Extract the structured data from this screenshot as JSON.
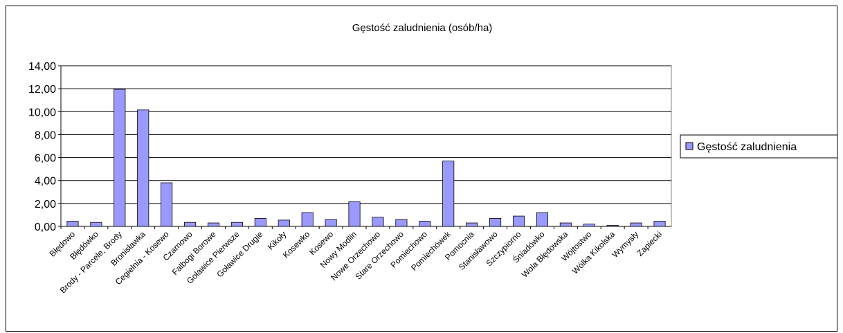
{
  "chart_data": {
    "type": "bar",
    "title": "Gęstość zaludnienia (osób/ha)",
    "categories": [
      "Błędowo",
      "Błędówko",
      "Brody - Parcele, Brody",
      "Bronisławka",
      "Cegielnia - Kosewo",
      "Czarnowo",
      "Falbogi Borowe",
      "Goławice Pierwsze",
      "Goławice Drugie",
      "Kikoły",
      "Kosewko",
      "Kosewo",
      "Nowy Modlin",
      "Nowe Orzechowo",
      "Stare Orzechowo",
      "Pomiechowo",
      "Pomiechówek",
      "Pomocnia",
      "Stanisławowo",
      "Szczypiorno",
      "Śniadówko",
      "Wola Błędowska",
      "Wójtostwo",
      "Wólka Kikolska",
      "Wymysły",
      "Zapiecki"
    ],
    "series": [
      {
        "name": "Gęstość zaludnienia",
        "color": "#9999ff",
        "values": [
          0.45,
          0.35,
          11.95,
          10.15,
          3.8,
          0.35,
          0.3,
          0.35,
          0.7,
          0.55,
          1.2,
          0.6,
          2.15,
          0.8,
          0.6,
          0.45,
          5.7,
          0.3,
          0.7,
          0.9,
          1.2,
          0.3,
          0.2,
          0.1,
          0.3,
          0.45
        ]
      }
    ],
    "ylim": [
      0,
      14
    ],
    "yticks": [
      {
        "value": 0,
        "label": "0,00"
      },
      {
        "value": 2,
        "label": "2,00"
      },
      {
        "value": 4,
        "label": "4,00"
      },
      {
        "value": 6,
        "label": "6,00"
      },
      {
        "value": 8,
        "label": "8,00"
      },
      {
        "value": 10,
        "label": "10,00"
      },
      {
        "value": 12,
        "label": "12,00"
      },
      {
        "value": 14,
        "label": "14,00"
      }
    ],
    "grid": true,
    "legend": "right"
  }
}
